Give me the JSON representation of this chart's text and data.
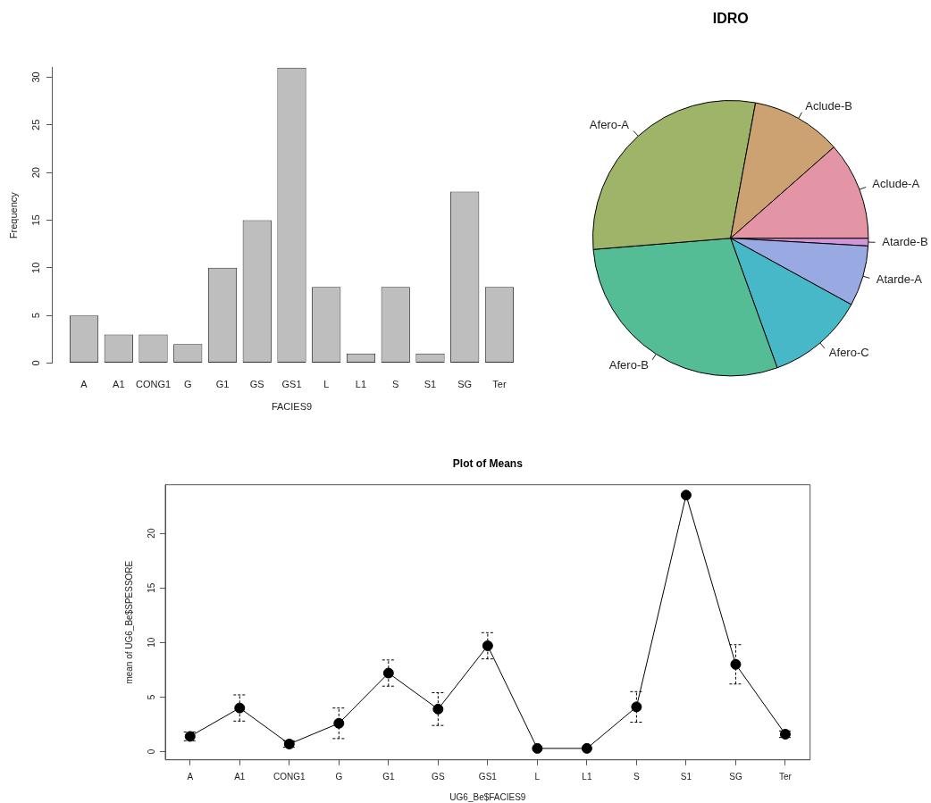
{
  "chart_data": [
    {
      "type": "bar",
      "categories": [
        "A",
        "A1",
        "CONG1",
        "G",
        "G1",
        "GS",
        "GS1",
        "L",
        "L1",
        "S",
        "S1",
        "SG",
        "Ter"
      ],
      "values": [
        5,
        3,
        3,
        2,
        10,
        15,
        31,
        8,
        1,
        8,
        1,
        18,
        8
      ],
      "color": "#bebebe",
      "xlabel": "FACIES9",
      "ylabel": "Frequency",
      "ylim": [
        0,
        31
      ],
      "yticks": [
        0,
        5,
        10,
        15,
        20,
        25,
        30
      ]
    },
    {
      "type": "pie",
      "title": "IDRO",
      "categories": [
        "Aclude-A",
        "Aclude-B",
        "Afero-A",
        "Afero-B",
        "Afero-C",
        "Atarde-A",
        "Atarde-B"
      ],
      "values": [
        11.5,
        10.6,
        29.2,
        29.2,
        11.5,
        7.1,
        0.9
      ],
      "colors": [
        "#e495a5",
        "#cda272",
        "#9db469",
        "#55bd96",
        "#47b8c8",
        "#99a9e1",
        "#d495d6"
      ]
    },
    {
      "type": "line",
      "title": "Plot of Means",
      "categories": [
        "A",
        "A1",
        "CONG1",
        "G",
        "G1",
        "GS",
        "GS1",
        "L",
        "L1",
        "S",
        "S1",
        "SG",
        "Ter"
      ],
      "series": [
        {
          "color": "#000000",
          "values": [
            1.4,
            4.0,
            0.7,
            2.6,
            7.2,
            3.9,
            9.7,
            0.3,
            0.3,
            4.1,
            23.5,
            8.0,
            1.6
          ],
          "errors": [
            0.4,
            1.2,
            0.3,
            1.4,
            1.2,
            1.5,
            1.2,
            null,
            null,
            1.4,
            null,
            1.8,
            0.3
          ]
        }
      ],
      "xlabel": "UG6_Be$FACIES9",
      "ylabel": "mean of UG6_Be$SPESSORE",
      "ylim": [
        -0.75,
        24.45
      ],
      "yticks": [
        0,
        5,
        10,
        15,
        20
      ],
      "marker": "circle",
      "line_style": "solid"
    }
  ]
}
